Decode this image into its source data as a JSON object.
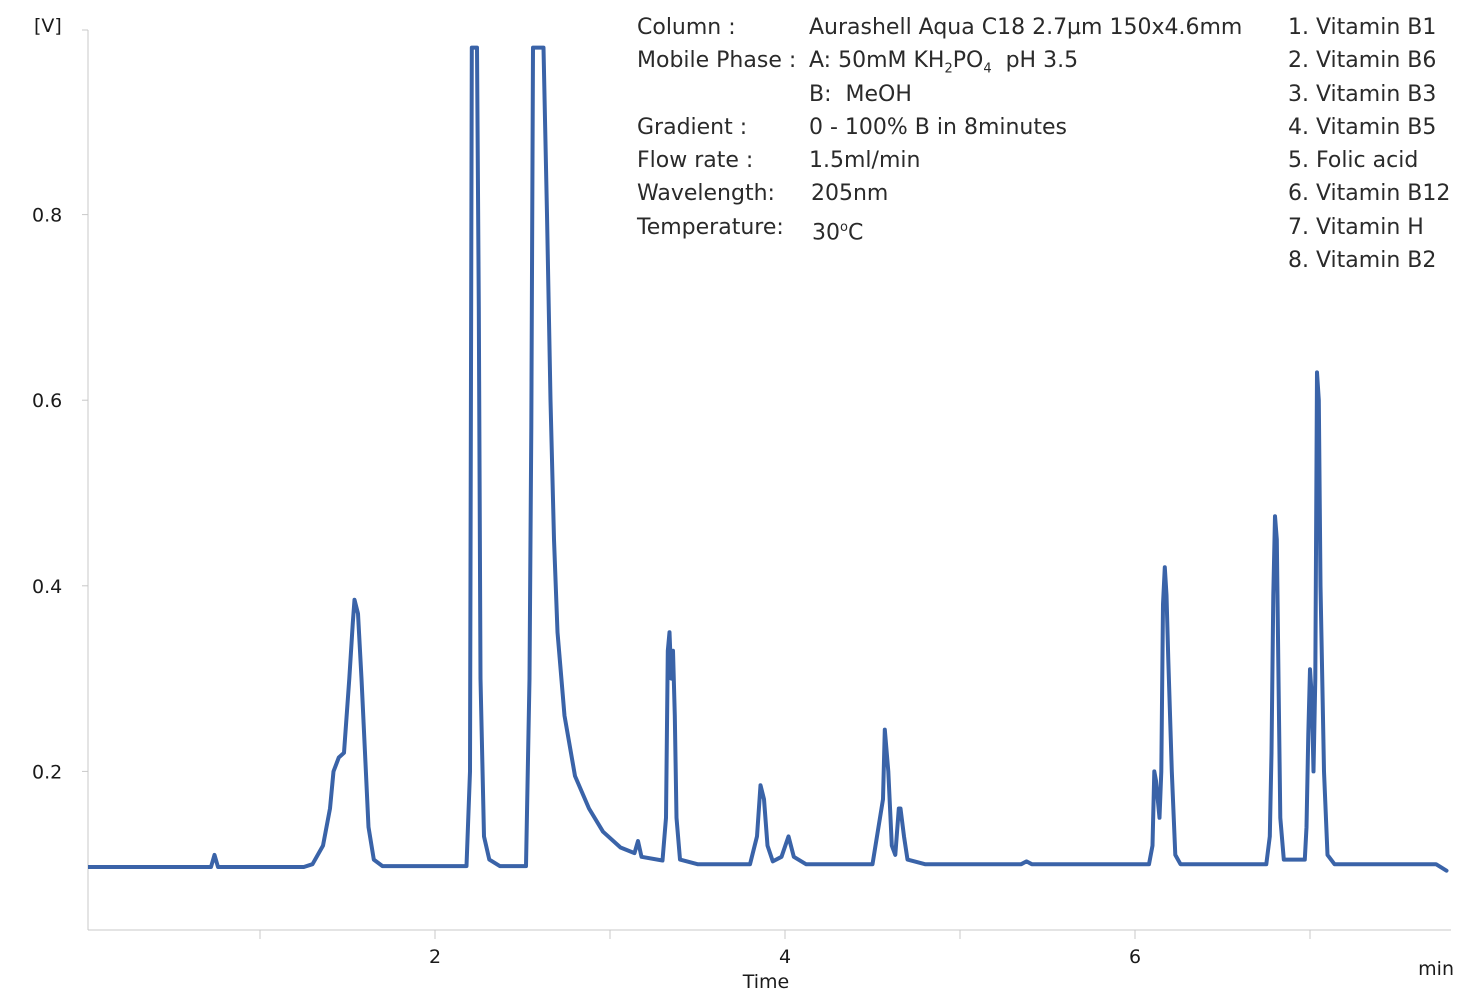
{
  "chart_data": {
    "type": "line",
    "title": "",
    "xlabel": "Time",
    "x_unit": "min",
    "ylabel": "[V]",
    "xlim": [
      0.0,
      7.8
    ],
    "ylim": [
      0.0,
      0.98
    ],
    "x_ticks": [
      2,
      4,
      6
    ],
    "y_ticks": [
      0.2,
      0.4,
      0.6,
      0.8
    ],
    "grid": false,
    "series": [
      {
        "color": "#3a63a8",
        "points": [
          [
            0.0,
            0.097
          ],
          [
            0.72,
            0.097
          ],
          [
            0.74,
            0.11
          ],
          [
            0.76,
            0.097
          ],
          [
            1.25,
            0.097
          ],
          [
            1.3,
            0.1
          ],
          [
            1.36,
            0.12
          ],
          [
            1.4,
            0.16
          ],
          [
            1.42,
            0.2
          ],
          [
            1.45,
            0.215
          ],
          [
            1.48,
            0.22
          ],
          [
            1.51,
            0.3
          ],
          [
            1.53,
            0.36
          ],
          [
            1.54,
            0.385
          ],
          [
            1.56,
            0.37
          ],
          [
            1.58,
            0.3
          ],
          [
            1.6,
            0.22
          ],
          [
            1.62,
            0.14
          ],
          [
            1.65,
            0.105
          ],
          [
            1.7,
            0.098
          ],
          [
            2.18,
            0.098
          ],
          [
            2.2,
            0.2
          ],
          [
            2.21,
            0.98
          ],
          [
            2.24,
            0.98
          ],
          [
            2.25,
            0.7
          ],
          [
            2.26,
            0.3
          ],
          [
            2.28,
            0.13
          ],
          [
            2.31,
            0.105
          ],
          [
            2.37,
            0.098
          ],
          [
            2.52,
            0.098
          ],
          [
            2.54,
            0.3
          ],
          [
            2.55,
            0.57
          ],
          [
            2.56,
            0.98
          ],
          [
            2.62,
            0.98
          ],
          [
            2.64,
            0.8
          ],
          [
            2.66,
            0.6
          ],
          [
            2.68,
            0.45
          ],
          [
            2.7,
            0.35
          ],
          [
            2.74,
            0.26
          ],
          [
            2.8,
            0.195
          ],
          [
            2.88,
            0.16
          ],
          [
            2.96,
            0.135
          ],
          [
            3.06,
            0.118
          ],
          [
            3.14,
            0.112
          ],
          [
            3.16,
            0.125
          ],
          [
            3.18,
            0.108
          ],
          [
            3.3,
            0.104
          ],
          [
            3.32,
            0.15
          ],
          [
            3.33,
            0.33
          ],
          [
            3.34,
            0.35
          ],
          [
            3.35,
            0.3
          ],
          [
            3.36,
            0.33
          ],
          [
            3.37,
            0.26
          ],
          [
            3.38,
            0.15
          ],
          [
            3.4,
            0.105
          ],
          [
            3.5,
            0.1
          ],
          [
            3.8,
            0.1
          ],
          [
            3.84,
            0.13
          ],
          [
            3.86,
            0.185
          ],
          [
            3.88,
            0.17
          ],
          [
            3.9,
            0.12
          ],
          [
            3.93,
            0.103
          ],
          [
            3.98,
            0.108
          ],
          [
            4.02,
            0.13
          ],
          [
            4.05,
            0.108
          ],
          [
            4.12,
            0.1
          ],
          [
            4.5,
            0.1
          ],
          [
            4.56,
            0.17
          ],
          [
            4.57,
            0.245
          ],
          [
            4.59,
            0.2
          ],
          [
            4.61,
            0.12
          ],
          [
            4.63,
            0.11
          ],
          [
            4.65,
            0.16
          ],
          [
            4.66,
            0.16
          ],
          [
            4.68,
            0.13
          ],
          [
            4.7,
            0.105
          ],
          [
            4.8,
            0.1
          ],
          [
            5.35,
            0.1
          ],
          [
            5.38,
            0.103
          ],
          [
            5.41,
            0.1
          ],
          [
            6.08,
            0.1
          ],
          [
            6.1,
            0.12
          ],
          [
            6.11,
            0.2
          ],
          [
            6.12,
            0.19
          ],
          [
            6.14,
            0.15
          ],
          [
            6.15,
            0.2
          ],
          [
            6.16,
            0.38
          ],
          [
            6.17,
            0.42
          ],
          [
            6.18,
            0.39
          ],
          [
            6.19,
            0.32
          ],
          [
            6.21,
            0.2
          ],
          [
            6.23,
            0.11
          ],
          [
            6.26,
            0.1
          ],
          [
            6.75,
            0.1
          ],
          [
            6.77,
            0.13
          ],
          [
            6.78,
            0.22
          ],
          [
            6.79,
            0.39
          ],
          [
            6.8,
            0.475
          ],
          [
            6.81,
            0.45
          ],
          [
            6.82,
            0.3
          ],
          [
            6.83,
            0.15
          ],
          [
            6.85,
            0.105
          ],
          [
            6.97,
            0.105
          ],
          [
            6.98,
            0.14
          ],
          [
            6.99,
            0.24
          ],
          [
            7.0,
            0.31
          ],
          [
            7.01,
            0.28
          ],
          [
            7.02,
            0.2
          ],
          [
            7.03,
            0.3
          ],
          [
            7.04,
            0.63
          ],
          [
            7.05,
            0.6
          ],
          [
            7.06,
            0.4
          ],
          [
            7.08,
            0.2
          ],
          [
            7.1,
            0.11
          ],
          [
            7.14,
            0.1
          ],
          [
            7.72,
            0.1
          ],
          [
            7.78,
            0.093
          ]
        ]
      }
    ]
  },
  "conditions": [
    {
      "label": "Column :",
      "value": "Aurashell Aqua C18 2.7µm 150x4.6mm"
    },
    {
      "label": "Mobile Phase :",
      "value_parts": {
        "prefix": "A: 50mM KH",
        "sub1": "2",
        "mid": "PO",
        "sub2": "4",
        "suffix": "  pH 3.5"
      }
    },
    {
      "label": "",
      "value": "B:  MeOH"
    },
    {
      "label": "Gradient :",
      "value": "0 - 100% B in 8minutes"
    },
    {
      "label": "Flow rate :",
      "value": "1.5ml/min"
    },
    {
      "label": "Wavelength:",
      "value": "205nm"
    },
    {
      "label": "Temperature:",
      "value_parts": {
        "prefix": "30",
        "sup": "o",
        "suffix": "C"
      }
    }
  ],
  "peaks": [
    "1. Vitamin B1",
    "2. Vitamin B6",
    "3. Vitamin B3",
    "4. Vitamin B5",
    "5. Folic acid",
    "6. Vitamin B12",
    "7. Vitamin H",
    "8. Vitamin B2"
  ]
}
